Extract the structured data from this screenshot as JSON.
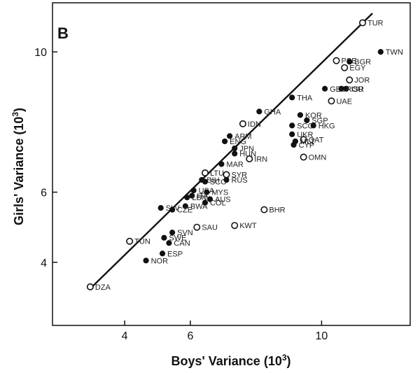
{
  "chart_data": {
    "type": "scatter",
    "panel_label": "B",
    "xlabel": "Boys' Variance (10",
    "ylabel": "Girls' Variance (10",
    "axis_unit_exponent": "3",
    "xlim": [
      1.8,
      12.7
    ],
    "ylim": [
      2.2,
      11.4
    ],
    "x_ticks": [
      4,
      6,
      10
    ],
    "y_ticks": [
      4,
      6,
      10
    ],
    "x_tick_labels": [
      "4",
      "6",
      "10"
    ],
    "y_tick_labels": [
      "4",
      "6",
      "10"
    ],
    "regression_line": {
      "x": [
        2.95,
        11.55
      ],
      "y": [
        3.25,
        11.1
      ]
    },
    "grid": false,
    "legend": "none",
    "marker_colors": {
      "filled": "#111111",
      "open_fill": "#ffffff",
      "stroke": "#111111"
    },
    "points": [
      {
        "label": "TUR",
        "x": 11.25,
        "y": 10.83,
        "filled": false
      },
      {
        "label": "TWN",
        "x": 11.8,
        "y": 10.0,
        "filled": true
      },
      {
        "label": "PSE",
        "x": 10.45,
        "y": 9.75,
        "filled": false
      },
      {
        "label": "BGR",
        "x": 10.85,
        "y": 9.72,
        "filled": true
      },
      {
        "label": "EGY",
        "x": 10.7,
        "y": 9.55,
        "filled": false
      },
      {
        "label": "JOR",
        "x": 10.85,
        "y": 9.2,
        "filled": false
      },
      {
        "label": "GEO",
        "x": 10.1,
        "y": 8.95,
        "filled": true
      },
      {
        "label": "UAE",
        "x": 10.3,
        "y": 8.6,
        "filled": false
      },
      {
        "label": "ISR",
        "x": 10.75,
        "y": 8.95,
        "filled": true
      },
      {
        "label": "ROU",
        "x": 10.6,
        "y": 8.95,
        "filled": true
      },
      {
        "label": "THA",
        "x": 9.1,
        "y": 8.7,
        "filled": true
      },
      {
        "label": "KOR",
        "x": 9.35,
        "y": 8.2,
        "filled": true
      },
      {
        "label": "GHA",
        "x": 8.1,
        "y": 8.3,
        "filled": true
      },
      {
        "label": "SGP",
        "x": 9.55,
        "y": 8.05,
        "filled": true
      },
      {
        "label": "SCG",
        "x": 9.1,
        "y": 7.9,
        "filled": true
      },
      {
        "label": "IDN",
        "x": 7.6,
        "y": 7.95,
        "filled": false
      },
      {
        "label": "HKG",
        "x": 9.75,
        "y": 7.9,
        "filled": true
      },
      {
        "label": "UKR",
        "x": 9.1,
        "y": 7.65,
        "filled": true
      },
      {
        "label": "QAT",
        "x": 9.45,
        "y": 7.5,
        "filled": false
      },
      {
        "label": "ARM",
        "x": 7.2,
        "y": 7.6,
        "filled": true
      },
      {
        "label": "CYP",
        "x": 9.15,
        "y": 7.35,
        "filled": true
      },
      {
        "label": "JPN",
        "x": 7.35,
        "y": 7.25,
        "filled": true
      },
      {
        "label": "ENG",
        "x": 7.05,
        "y": 7.45,
        "filled": true
      },
      {
        "label": "OMN",
        "x": 9.45,
        "y": 7.0,
        "filled": false
      },
      {
        "label": "MLT",
        "x": 9.2,
        "y": 7.45,
        "filled": true
      },
      {
        "label": "IRN",
        "x": 7.8,
        "y": 6.95,
        "filled": false
      },
      {
        "label": "HUN",
        "x": 7.35,
        "y": 7.1,
        "filled": true
      },
      {
        "label": "MAR",
        "x": 6.95,
        "y": 6.8,
        "filled": true
      },
      {
        "label": "SYR",
        "x": 7.1,
        "y": 6.5,
        "filled": false
      },
      {
        "label": "LTU",
        "x": 6.45,
        "y": 6.55,
        "filled": false
      },
      {
        "label": "BIH",
        "x": 6.35,
        "y": 6.35,
        "filled": true
      },
      {
        "label": "RUS",
        "x": 7.1,
        "y": 6.35,
        "filled": true
      },
      {
        "label": "SCO",
        "x": 6.45,
        "y": 6.3,
        "filled": true
      },
      {
        "label": "USA",
        "x": 6.1,
        "y": 6.05,
        "filled": true
      },
      {
        "label": "MYS",
        "x": 6.5,
        "y": 6.0,
        "filled": true
      },
      {
        "label": "ITA",
        "x": 6.05,
        "y": 5.9,
        "filled": true
      },
      {
        "label": "AUS",
        "x": 6.6,
        "y": 5.8,
        "filled": true
      },
      {
        "label": "LBN",
        "x": 5.9,
        "y": 5.85,
        "filled": true
      },
      {
        "label": "SLV",
        "x": 5.1,
        "y": 5.55,
        "filled": true
      },
      {
        "label": "BWA",
        "x": 5.85,
        "y": 5.6,
        "filled": true
      },
      {
        "label": "COL",
        "x": 6.45,
        "y": 5.7,
        "filled": true
      },
      {
        "label": "CZE",
        "x": 5.45,
        "y": 5.5,
        "filled": true
      },
      {
        "label": "BHR",
        "x": 8.25,
        "y": 5.5,
        "filled": false
      },
      {
        "label": "KWT",
        "x": 7.35,
        "y": 5.05,
        "filled": false
      },
      {
        "label": "SAU",
        "x": 6.2,
        "y": 5.0,
        "filled": false
      },
      {
        "label": "SVN",
        "x": 5.45,
        "y": 4.85,
        "filled": true
      },
      {
        "label": "TUN",
        "x": 4.15,
        "y": 4.6,
        "filled": false
      },
      {
        "label": "SWE",
        "x": 5.2,
        "y": 4.7,
        "filled": true
      },
      {
        "label": "CAN",
        "x": 5.35,
        "y": 4.55,
        "filled": true
      },
      {
        "label": "ESP",
        "x": 5.15,
        "y": 4.25,
        "filled": true
      },
      {
        "label": "NOR",
        "x": 4.65,
        "y": 4.05,
        "filled": true
      },
      {
        "label": "DZA",
        "x": 2.95,
        "y": 3.3,
        "filled": false
      }
    ]
  }
}
